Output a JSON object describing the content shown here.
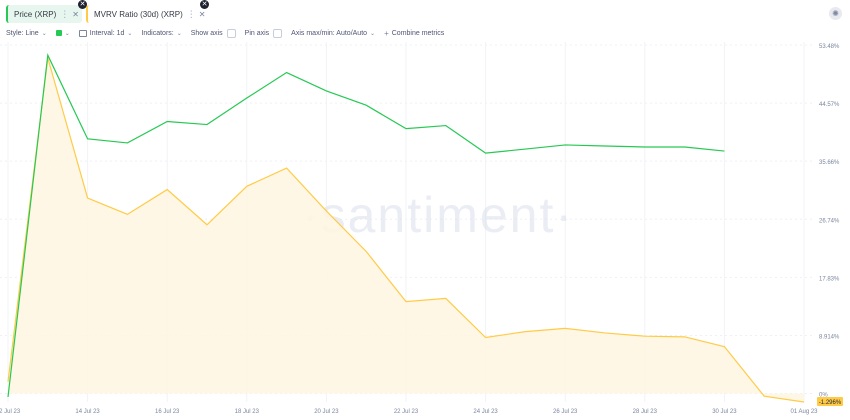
{
  "tabs": [
    {
      "label": "Price (XRP)",
      "color": "#26c953"
    },
    {
      "label": "MVRV Ratio (30d) (XRP)",
      "color": "#ffcb47"
    }
  ],
  "toolbar": {
    "style_label": "Style: Line",
    "interval_label": "Interval: 1d",
    "indicators_label": "Indicators:",
    "show_axis_label": "Show axis",
    "pin_axis_label": "Pin axis",
    "axis_minmax_label": "Axis max/min: Auto/Auto",
    "combine_label": "Combine metrics"
  },
  "watermark": "·santiment·",
  "chart_data": {
    "type": "line",
    "x": [
      "12 Jul 23",
      "13 Jul 23",
      "14 Jul 23",
      "15 Jul 23",
      "16 Jul 23",
      "17 Jul 23",
      "18 Jul 23",
      "19 Jul 23",
      "20 Jul 23",
      "21 Jul 23",
      "22 Jul 23",
      "23 Jul 23",
      "24 Jul 23",
      "25 Jul 23",
      "26 Jul 23",
      "27 Jul 23",
      "28 Jul 23",
      "29 Jul 23",
      "30 Jul 23",
      "31 Jul 23",
      "01 Aug 23"
    ],
    "x_tick_labels": [
      "12 Jul 23",
      "14 Jul 23",
      "16 Jul 23",
      "18 Jul 23",
      "20 Jul 23",
      "22 Jul 23",
      "24 Jul 23",
      "26 Jul 23",
      "28 Jul 23",
      "30 Jul 23",
      "01 Aug 23"
    ],
    "series": [
      {
        "name": "Price (XRP)",
        "color": "#26c953",
        "values": [
          0.475,
          0.81,
          0.728,
          0.724,
          0.745,
          0.742,
          0.768,
          0.793,
          0.775,
          0.761,
          0.738,
          0.741,
          0.714,
          0.718,
          0.722,
          0.721,
          0.72,
          0.72,
          0.716,
          null,
          null
        ]
      },
      {
        "name": "MVRV Ratio (30d) (XRP)",
        "color": "#ffcb47",
        "fill": "#fff6e0",
        "values": [
          1.8,
          51.5,
          30.0,
          27.5,
          31.3,
          25.9,
          31.8,
          34.6,
          28.0,
          21.8,
          14.1,
          14.6,
          8.6,
          9.5,
          10.0,
          9.3,
          8.8,
          8.7,
          7.2,
          -0.4,
          -1.296
        ]
      }
    ],
    "right_axis_ticks": [
      "53.48%",
      "44.57%",
      "35.66%",
      "26.74%",
      "17.83%",
      "8.914%",
      "0%"
    ],
    "last_value_label": "-1.296%",
    "mvrv_ylim": [
      -1.296,
      53.48
    ],
    "price_ylim": [
      0.47,
      0.82
    ],
    "grid": true
  }
}
